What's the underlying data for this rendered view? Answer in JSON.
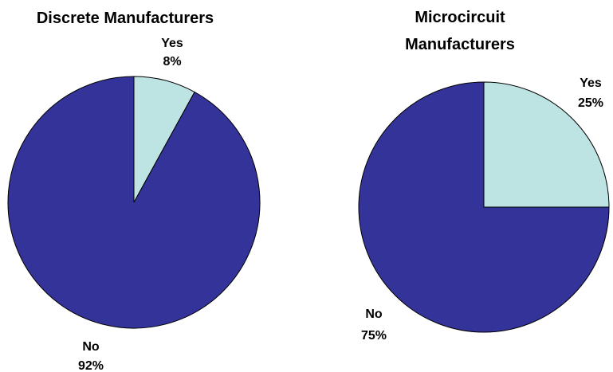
{
  "chart_data": [
    {
      "type": "pie",
      "title_lines": [
        "Discrete Manufacturers"
      ],
      "slices": [
        {
          "label": "Yes",
          "value": 8,
          "value_text": "8%",
          "color": "#bde3e3"
        },
        {
          "label": "No",
          "value": 92,
          "value_text": "92%",
          "color": "#33339a"
        }
      ],
      "start_angle_deg": 0,
      "direction": "clockwise",
      "legend": "none"
    },
    {
      "type": "pie",
      "title_lines": [
        "Microcircuit",
        "Manufacturers"
      ],
      "slices": [
        {
          "label": "Yes",
          "value": 25,
          "value_text": "25%",
          "color": "#bde3e3"
        },
        {
          "label": "No",
          "value": 75,
          "value_text": "75%",
          "color": "#33339a"
        }
      ],
      "start_angle_deg": 0,
      "direction": "clockwise",
      "legend": "none"
    }
  ]
}
